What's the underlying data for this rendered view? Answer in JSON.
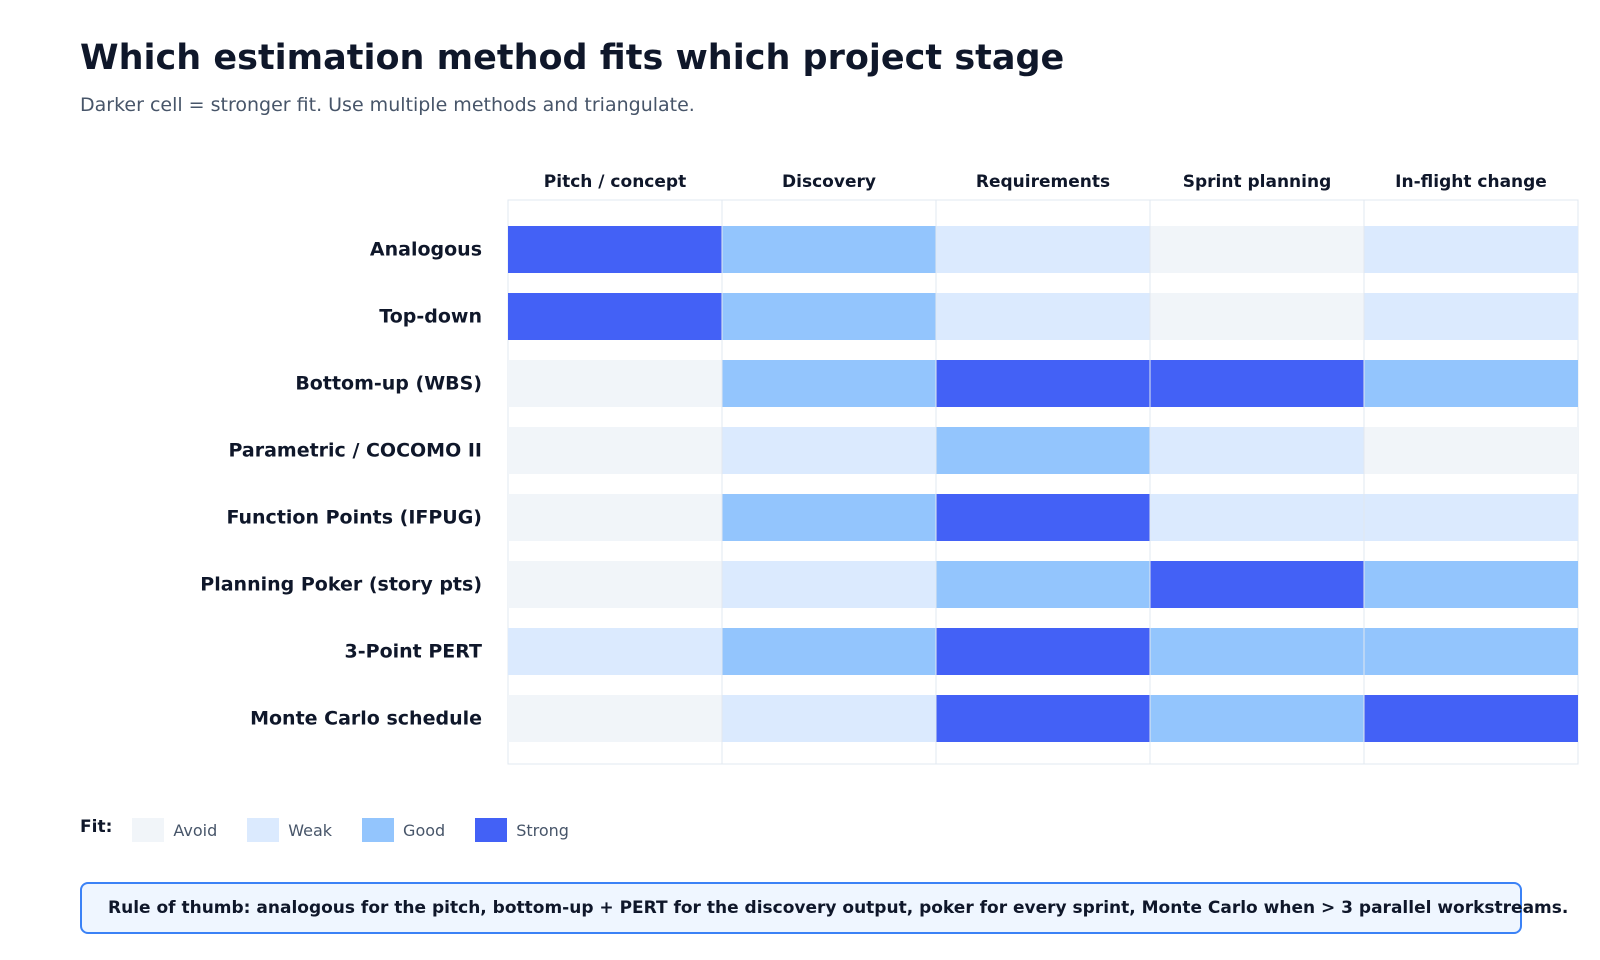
{
  "header": {
    "title": "Which estimation method fits which project stage",
    "subtitle": "Darker cell = stronger fit. Use multiple methods and triangulate."
  },
  "chart_data": {
    "type": "heatmap",
    "columns": [
      "Pitch / concept",
      "Discovery",
      "Requirements",
      "Sprint planning",
      "In-flight change"
    ],
    "rows": [
      "Analogous",
      "Top-down",
      "Bottom-up (WBS)",
      "Parametric / COCOMO II",
      "Function Points (IFPUG)",
      "Planning Poker (story pts)",
      "3-Point PERT",
      "Monte Carlo schedule"
    ],
    "levels": [
      "Avoid",
      "Weak",
      "Good",
      "Strong"
    ],
    "values": [
      [
        3,
        2,
        1,
        0,
        1
      ],
      [
        3,
        2,
        1,
        0,
        1
      ],
      [
        0,
        2,
        3,
        3,
        2
      ],
      [
        0,
        1,
        2,
        1,
        0
      ],
      [
        0,
        2,
        3,
        1,
        1
      ],
      [
        0,
        1,
        2,
        3,
        2
      ],
      [
        1,
        2,
        3,
        2,
        2
      ],
      [
        0,
        1,
        3,
        2,
        3
      ]
    ],
    "colors": {
      "Avoid": "#f1f5f9",
      "Weak": "#dbeafe",
      "Good": "#93c5fd",
      "Strong": "#4361f6"
    }
  },
  "legend": {
    "title": "Fit:",
    "items": [
      {
        "label": "Avoid",
        "color": "#f1f5f9"
      },
      {
        "label": "Weak",
        "color": "#dbeafe"
      },
      {
        "label": "Good",
        "color": "#93c5fd"
      },
      {
        "label": "Strong",
        "color": "#4361f6"
      }
    ]
  },
  "callout": {
    "text": "Rule of thumb: analogous for the pitch, bottom-up + PERT for the discovery output, poker for every sprint, Monte Carlo when > 3 parallel workstreams."
  }
}
